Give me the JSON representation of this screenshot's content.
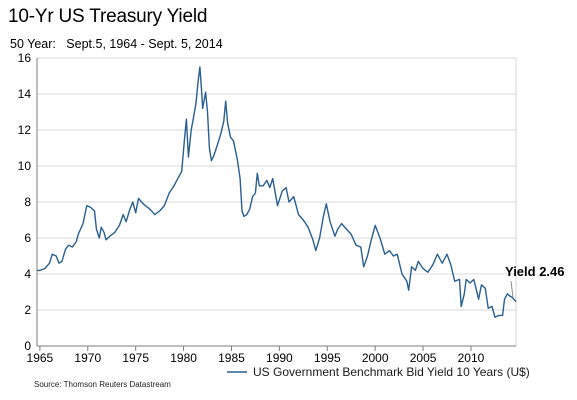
{
  "header": {
    "title": "10-Yr US Treasury Yield",
    "subtitle": "50 Year:   Sept.5, 1964 - Sept. 5, 2014"
  },
  "footer": {
    "source": "Source: Thomson Reuters Datastream"
  },
  "colors": {
    "series": "#2a5f8f",
    "axis": "#7f7f7f",
    "grid": "#d9d9d9",
    "background": "#ffffff"
  },
  "chart_data": {
    "type": "line",
    "title": "10-Yr US Treasury Yield",
    "subtitle": "50 Year:   Sept.5, 1964 - Sept. 5, 2014",
    "xlabel": "",
    "ylabel": "",
    "xlim": [
      1964.7,
      2014.7
    ],
    "ylim": [
      0,
      16
    ],
    "grid": "horizontal",
    "legend_position": "bottom-right",
    "xticks": [
      1965,
      1970,
      1975,
      1980,
      1985,
      1990,
      1995,
      2000,
      2005,
      2010
    ],
    "yticks": [
      0,
      2,
      4,
      6,
      8,
      10,
      12,
      14,
      16
    ],
    "annotation": {
      "text": "Yield 2.46",
      "x": 2014.7,
      "y": 2.46
    },
    "series": [
      {
        "name": "US Government Benchmark Bid Yield 10 Years (U$)",
        "x": [
          1964.7,
          1965.0,
          1965.5,
          1966.0,
          1966.3,
          1966.7,
          1967.0,
          1967.3,
          1967.7,
          1968.0,
          1968.4,
          1968.8,
          1969.0,
          1969.5,
          1969.9,
          1970.3,
          1970.7,
          1970.9,
          1971.2,
          1971.4,
          1971.7,
          1971.9,
          1972.3,
          1972.8,
          1973.3,
          1973.7,
          1974.0,
          1974.4,
          1974.7,
          1975.0,
          1975.3,
          1975.8,
          1976.0,
          1976.5,
          1977.0,
          1977.5,
          1978.0,
          1978.5,
          1979.0,
          1979.4,
          1979.8,
          1980.1,
          1980.3,
          1980.5,
          1980.8,
          1981.0,
          1981.3,
          1981.5,
          1981.7,
          1981.9,
          1982.0,
          1982.3,
          1982.5,
          1982.7,
          1982.9,
          1983.1,
          1983.3,
          1983.6,
          1983.9,
          1984.2,
          1984.4,
          1984.6,
          1984.9,
          1985.2,
          1985.6,
          1985.9,
          1986.1,
          1986.3,
          1986.6,
          1986.9,
          1987.2,
          1987.5,
          1987.7,
          1987.9,
          1988.3,
          1988.7,
          1989.0,
          1989.3,
          1989.8,
          1990.3,
          1990.7,
          1991.0,
          1991.5,
          1992.0,
          1992.5,
          1993.0,
          1993.5,
          1993.8,
          1994.2,
          1994.6,
          1994.9,
          1995.3,
          1995.8,
          1996.1,
          1996.5,
          1997.0,
          1997.5,
          1998.0,
          1998.5,
          1998.8,
          1999.2,
          1999.6,
          2000.0,
          2000.5,
          2001.0,
          2001.5,
          2001.9,
          2002.3,
          2002.8,
          2003.3,
          2003.5,
          2003.8,
          2004.2,
          2004.5,
          2005.0,
          2005.5,
          2006.0,
          2006.5,
          2007.0,
          2007.5,
          2007.9,
          2008.3,
          2008.8,
          2008.98,
          2009.3,
          2009.5,
          2009.9,
          2010.3,
          2010.8,
          2011.1,
          2011.5,
          2011.8,
          2012.2,
          2012.5,
          2012.9,
          2013.3,
          2013.5,
          2013.8,
          2014.0,
          2014.3,
          2014.7
        ],
        "values": [
          4.2,
          4.2,
          4.3,
          4.6,
          5.1,
          5.0,
          4.6,
          4.7,
          5.4,
          5.6,
          5.5,
          5.8,
          6.2,
          6.8,
          7.8,
          7.7,
          7.5,
          6.5,
          6.0,
          6.6,
          6.3,
          5.9,
          6.1,
          6.3,
          6.7,
          7.3,
          6.9,
          7.6,
          8.0,
          7.4,
          8.2,
          7.9,
          7.8,
          7.6,
          7.3,
          7.5,
          7.8,
          8.5,
          8.9,
          9.3,
          9.7,
          11.5,
          12.6,
          10.5,
          12.0,
          12.6,
          13.5,
          14.6,
          15.5,
          14.0,
          13.2,
          14.1,
          13.0,
          11.0,
          10.3,
          10.5,
          10.8,
          11.3,
          11.8,
          12.5,
          13.6,
          12.4,
          11.6,
          11.4,
          10.4,
          9.3,
          7.5,
          7.2,
          7.3,
          7.6,
          8.3,
          8.5,
          9.6,
          8.9,
          8.9,
          9.2,
          8.8,
          9.3,
          7.8,
          8.6,
          8.8,
          8.0,
          8.3,
          7.3,
          7.0,
          6.6,
          5.9,
          5.3,
          6.0,
          7.2,
          7.9,
          6.9,
          6.1,
          6.5,
          6.8,
          6.5,
          6.2,
          5.6,
          5.5,
          4.4,
          5.0,
          5.9,
          6.7,
          6.0,
          5.1,
          5.3,
          5.0,
          5.1,
          4.0,
          3.6,
          3.1,
          4.4,
          4.2,
          4.7,
          4.3,
          4.1,
          4.5,
          5.1,
          4.6,
          5.1,
          4.5,
          3.6,
          3.7,
          2.2,
          2.9,
          3.7,
          3.5,
          3.7,
          2.6,
          3.4,
          3.2,
          2.1,
          2.2,
          1.6,
          1.7,
          1.7,
          2.6,
          2.9,
          2.8,
          2.7,
          2.46
        ]
      }
    ]
  }
}
